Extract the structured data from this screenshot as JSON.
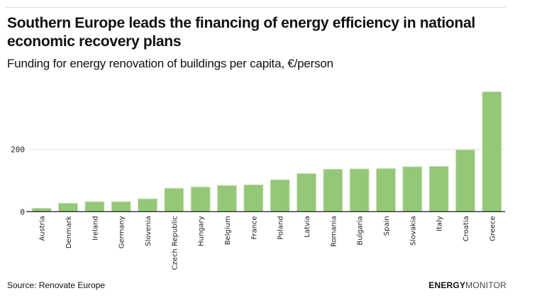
{
  "header": {
    "title": "Southern Europe leads the financing of energy efficiency in national economic recovery plans",
    "subtitle": "Funding for energy renovation of buildings per capita, €/person"
  },
  "footer": {
    "source": "Source: Renovate Europe",
    "brand_bold": "ENERGY",
    "brand_light": "MONITOR"
  },
  "colors": {
    "bar": "#94c777",
    "bar_edge": "#c9e3b9",
    "axis": "#333333",
    "grid": "#e3e3e3"
  },
  "chart_data": {
    "type": "bar",
    "title": "Southern Europe leads the financing of energy efficiency in national economic recovery plans",
    "subtitle": "Funding for energy renovation of buildings per capita, €/person",
    "xlabel": "",
    "ylabel": "",
    "categories": [
      "Austria",
      "Denmark",
      "Ireland",
      "Germany",
      "Slovenia",
      "Czech Republic",
      "Hungary",
      "Belgium",
      "France",
      "Poland",
      "Latvia",
      "Romania",
      "Bulgaria",
      "Spain",
      "Slovakia",
      "Italy",
      "Croatia",
      "Greece"
    ],
    "values": [
      11,
      27,
      32,
      32,
      41,
      75,
      79,
      84,
      86,
      102,
      122,
      136,
      137,
      138,
      144,
      145,
      198,
      384
    ],
    "yticks": [
      0,
      200
    ],
    "ylim": [
      0,
      384
    ],
    "grid": true,
    "legend": "none"
  }
}
